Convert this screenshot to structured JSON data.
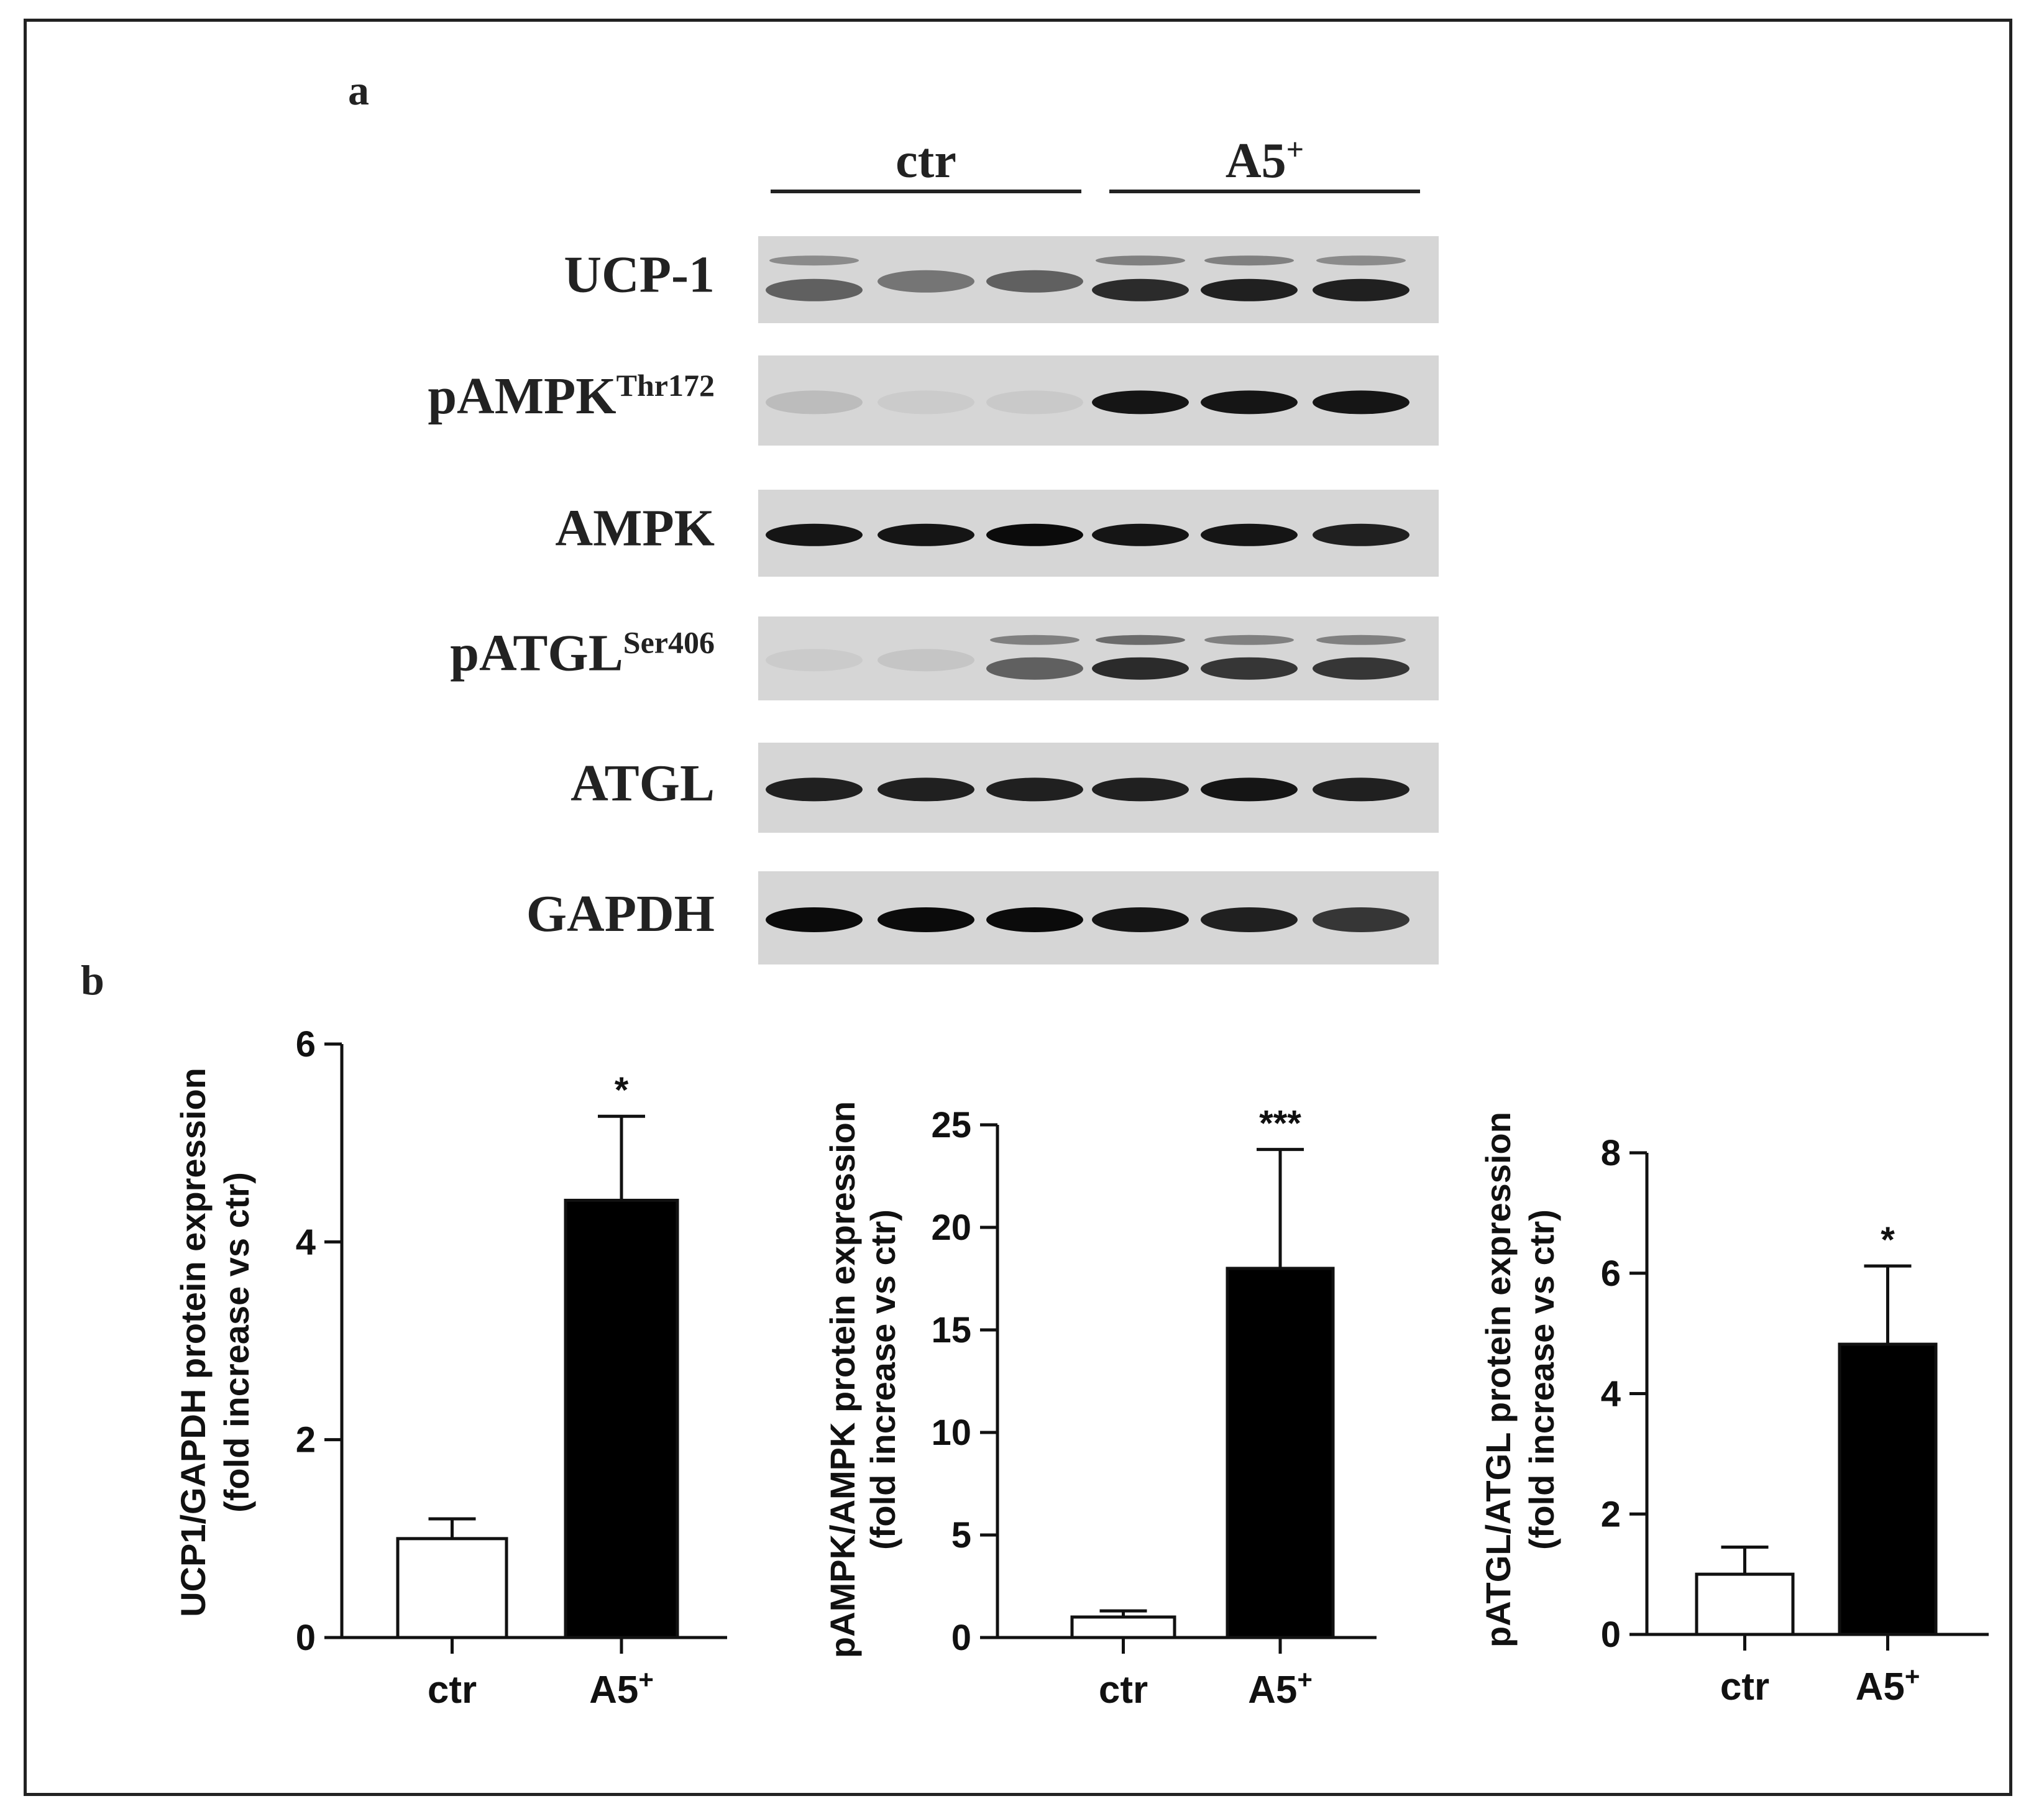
{
  "figure": {
    "panel_a_label": "a",
    "panel_b_label": "b"
  },
  "blot": {
    "groups": [
      {
        "name": "ctr",
        "sup": ""
      },
      {
        "name": "A5",
        "sup": "+"
      }
    ],
    "rows": [
      {
        "label": "UCP-1",
        "sup": "",
        "bands": [
          0.55,
          0.45,
          0.55,
          0.8,
          0.85,
          0.85
        ],
        "upper_bands": [
          0.35,
          0.0,
          0.0,
          0.4,
          0.4,
          0.35
        ]
      },
      {
        "label": "pAMPK",
        "sup": "Thr172",
        "bands": [
          0.12,
          0.05,
          0.06,
          0.9,
          0.9,
          0.9
        ],
        "upper_bands": [
          0,
          0,
          0,
          0,
          0,
          0
        ]
      },
      {
        "label": "AMPK",
        "sup": "",
        "bands": [
          0.9,
          0.9,
          0.95,
          0.9,
          0.9,
          0.85
        ],
        "upper_bands": [
          0,
          0,
          0,
          0,
          0,
          0
        ]
      },
      {
        "label": "pATGL",
        "sup": "Ser406",
        "bands": [
          0.05,
          0.08,
          0.55,
          0.8,
          0.75,
          0.75
        ],
        "upper_bands": [
          0,
          0,
          0.4,
          0.5,
          0.4,
          0.4
        ]
      },
      {
        "label": "ATGL",
        "sup": "",
        "bands": [
          0.85,
          0.85,
          0.85,
          0.85,
          0.9,
          0.85
        ],
        "upper_bands": [
          0,
          0,
          0,
          0,
          0,
          0
        ]
      },
      {
        "label": "GAPDH",
        "sup": "",
        "bands": [
          0.95,
          0.95,
          0.95,
          0.9,
          0.85,
          0.75
        ],
        "upper_bands": [
          0,
          0,
          0,
          0,
          0,
          0
        ]
      }
    ]
  },
  "chart_data": [
    {
      "type": "bar",
      "categories": [
        "ctr",
        "A5+"
      ],
      "category_labels": [
        {
          "text": "ctr",
          "sup": ""
        },
        {
          "text": "A5",
          "sup": "+"
        }
      ],
      "values": [
        1.0,
        4.42
      ],
      "errors": [
        0.2,
        0.85
      ],
      "fills": [
        "#ffffff",
        "#000000"
      ],
      "significance": [
        "",
        "*"
      ],
      "ylabel_line1": "UCP1/GAPDH protein expression",
      "ylabel_line2": "(fold increase vs ctr)",
      "ylim": [
        0,
        6
      ],
      "yticks": [
        0,
        2,
        4,
        6
      ]
    },
    {
      "type": "bar",
      "categories": [
        "ctr",
        "A5+"
      ],
      "category_labels": [
        {
          "text": "ctr",
          "sup": ""
        },
        {
          "text": "A5",
          "sup": "+"
        }
      ],
      "values": [
        1.0,
        18.0
      ],
      "errors": [
        0.3,
        5.8
      ],
      "fills": [
        "#ffffff",
        "#000000"
      ],
      "significance": [
        "",
        "***"
      ],
      "ylabel_line1": "pAMPK/AMPK protein expression",
      "ylabel_line2": "(fold increase vs ctr)",
      "ylim": [
        0,
        25
      ],
      "yticks": [
        0,
        5,
        10,
        15,
        20,
        25
      ]
    },
    {
      "type": "bar",
      "categories": [
        "ctr",
        "A5+"
      ],
      "category_labels": [
        {
          "text": "ctr",
          "sup": ""
        },
        {
          "text": "A5",
          "sup": "+"
        }
      ],
      "values": [
        1.0,
        4.82
      ],
      "errors": [
        0.45,
        1.3
      ],
      "fills": [
        "#ffffff",
        "#000000"
      ],
      "significance": [
        "",
        "*"
      ],
      "ylabel_line1": "pATGL/ATGL protein expression",
      "ylabel_line2": "(fold increase vs ctr)",
      "ylim": [
        0,
        8
      ],
      "yticks": [
        0,
        2,
        4,
        6,
        8
      ]
    }
  ]
}
